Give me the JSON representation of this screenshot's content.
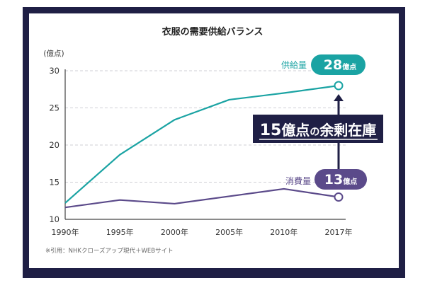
{
  "chart_data": {
    "type": "line",
    "title": "衣服の需要供給バランス",
    "ylabel": "(億点)",
    "xlabel": "",
    "categories": [
      "1990年",
      "1995年",
      "2000年",
      "2005年",
      "2010年",
      "2017年"
    ],
    "yticks": [
      "10",
      "15",
      "20",
      "25",
      "30"
    ],
    "ylim": [
      10,
      30
    ],
    "grid": true,
    "series": [
      {
        "name": "供給量",
        "values": [
          12.2,
          18.7,
          23.4,
          26.1,
          27.0,
          28.0
        ],
        "color": "#1aa3a3",
        "badge_number": "28",
        "badge_unit": "億点"
      },
      {
        "name": "消費量",
        "values": [
          11.6,
          12.6,
          12.1,
          13.1,
          14.1,
          13.0
        ],
        "color": "#5b4a8a",
        "badge_number": "13",
        "badge_unit": "億点"
      }
    ],
    "annotation": {
      "number": "15",
      "text_1": "億点",
      "text_2": "の",
      "text_3": "余剰在庫",
      "color": "#1f1f45"
    }
  },
  "source_note": "※引用：NHKクローズアップ現代＋WEBサイト"
}
